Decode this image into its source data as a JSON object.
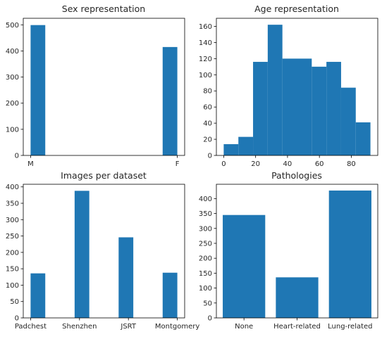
{
  "chart_data": [
    {
      "type": "bar",
      "title": "Sex representation",
      "xlabel": "",
      "ylabel": "",
      "xlim": [
        -0.05,
        1.05
      ],
      "ylim": [
        0,
        525
      ],
      "yticks": [
        0,
        100,
        200,
        300,
        400,
        500
      ],
      "xticks": [
        {
          "value": 0,
          "label": "M"
        },
        {
          "value": 1,
          "label": "F"
        }
      ],
      "bars": [
        {
          "from": 0.0,
          "to": 0.1,
          "value": 499
        },
        {
          "from": 0.9,
          "to": 1.0,
          "value": 415
        }
      ],
      "color": "#1f77b4"
    },
    {
      "type": "bar",
      "title": "Age representation",
      "xlabel": "",
      "ylabel": "",
      "xlim": [
        -4.6,
        96.6
      ],
      "ylim": [
        0,
        170
      ],
      "yticks": [
        0,
        20,
        40,
        60,
        80,
        100,
        120,
        140,
        160
      ],
      "xticks": [
        {
          "value": 0,
          "label": "0"
        },
        {
          "value": 20,
          "label": "20"
        },
        {
          "value": 40,
          "label": "40"
        },
        {
          "value": 60,
          "label": "60"
        },
        {
          "value": 80,
          "label": "80"
        }
      ],
      "bars": [
        {
          "from": 0,
          "to": 9.2,
          "value": 14
        },
        {
          "from": 9.2,
          "to": 18.4,
          "value": 23
        },
        {
          "from": 18.4,
          "to": 27.6,
          "value": 116
        },
        {
          "from": 27.6,
          "to": 36.8,
          "value": 162
        },
        {
          "from": 36.8,
          "to": 46.0,
          "value": 120
        },
        {
          "from": 46.0,
          "to": 55.2,
          "value": 120
        },
        {
          "from": 55.2,
          "to": 64.4,
          "value": 110
        },
        {
          "from": 64.4,
          "to": 73.6,
          "value": 116
        },
        {
          "from": 73.6,
          "to": 82.8,
          "value": 84
        },
        {
          "from": 82.8,
          "to": 92.0,
          "value": 41
        }
      ],
      "color": "#1f77b4"
    },
    {
      "type": "bar",
      "title": "Images per dataset",
      "xlabel": "",
      "ylabel": "",
      "xlim": [
        -0.15,
        3.15
      ],
      "ylim": [
        0,
        408
      ],
      "yticks": [
        0,
        50,
        100,
        150,
        200,
        250,
        300,
        350,
        400
      ],
      "xticks": [
        {
          "value": 0,
          "label": "Padchest"
        },
        {
          "value": 1,
          "label": "Shenzhen"
        },
        {
          "value": 2,
          "label": "JSRT"
        },
        {
          "value": 3,
          "label": "Montgomery"
        }
      ],
      "bars": [
        {
          "from": 0.0,
          "to": 0.3,
          "value": 136
        },
        {
          "from": 0.9,
          "to": 1.2,
          "value": 388
        },
        {
          "from": 1.8,
          "to": 2.1,
          "value": 246
        },
        {
          "from": 2.7,
          "to": 3.0,
          "value": 138
        }
      ],
      "color": "#1f77b4"
    },
    {
      "type": "bar",
      "title": "Pathologies",
      "xlabel": "",
      "ylabel": "",
      "xlim": [
        -0.52,
        2.52
      ],
      "ylim": [
        0,
        448
      ],
      "yticks": [
        0,
        50,
        100,
        150,
        200,
        250,
        300,
        350,
        400
      ],
      "xticks": [
        {
          "value": 0,
          "label": "None"
        },
        {
          "value": 1,
          "label": "Heart-related"
        },
        {
          "value": 2,
          "label": "Lung-related"
        }
      ],
      "bars": [
        {
          "from": -0.4,
          "to": 0.4,
          "value": 345
        },
        {
          "from": 0.6,
          "to": 1.4,
          "value": 136
        },
        {
          "from": 1.6,
          "to": 2.4,
          "value": 427
        }
      ],
      "color": "#1f77b4"
    }
  ]
}
